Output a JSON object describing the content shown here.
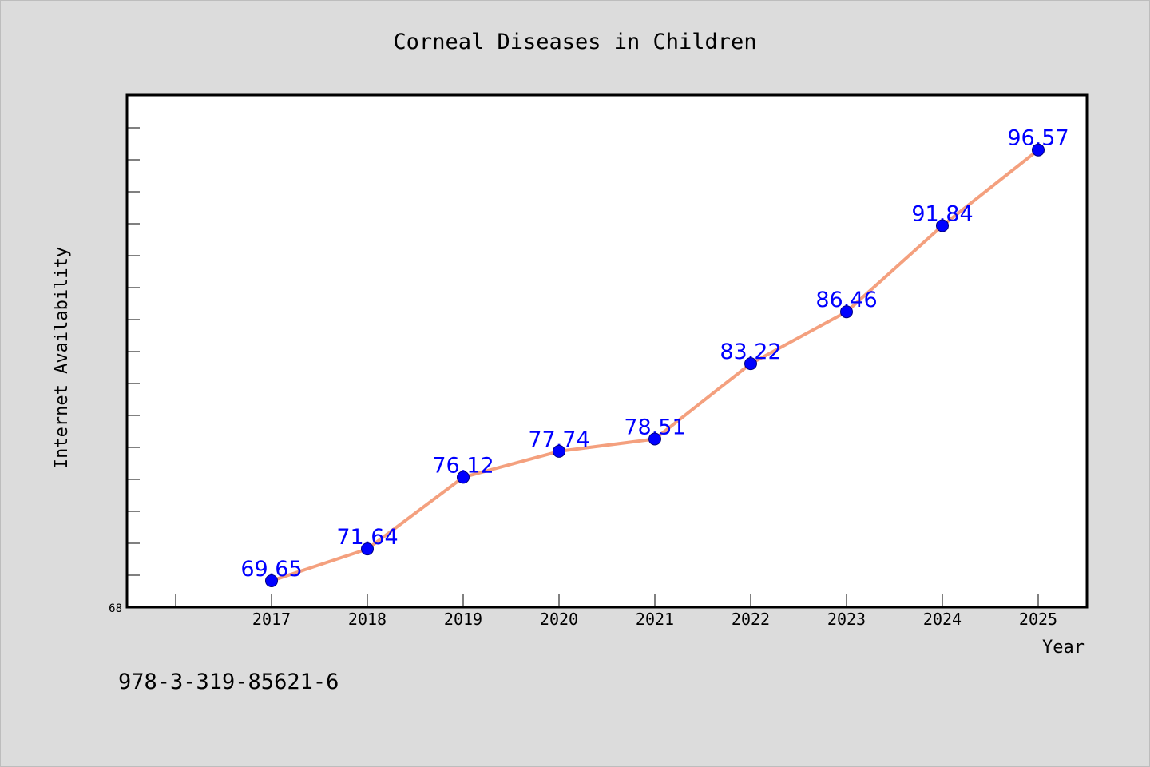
{
  "chart_data": {
    "type": "line",
    "title": "Corneal Diseases in Children",
    "xlabel": "Year",
    "ylabel": "Internet Availability",
    "categories": [
      "2017",
      "2018",
      "2019",
      "2020",
      "2021",
      "2022",
      "2023",
      "2024",
      "2025"
    ],
    "series": [
      {
        "values": [
          69.65,
          71.64,
          76.12,
          77.74,
          78.51,
          83.22,
          86.46,
          91.84,
          96.57
        ],
        "line_color": "#f4a07e",
        "marker_color": "#0000ff"
      }
    ],
    "data_labels": [
      "69.65",
      "71.64",
      "76.12",
      "77.74",
      "78.51",
      "83.22",
      "86.46",
      "91.84",
      "96.57"
    ],
    "ylim": [
      68,
      100
    ],
    "yticks": [
      "68"
    ],
    "data_label_color": "#0000ff",
    "grid": false,
    "legend": "none",
    "plot_background": "#ffffff",
    "figure_background": "#dcdcdc"
  },
  "footer": {
    "text": "978-3-319-85621-6"
  }
}
